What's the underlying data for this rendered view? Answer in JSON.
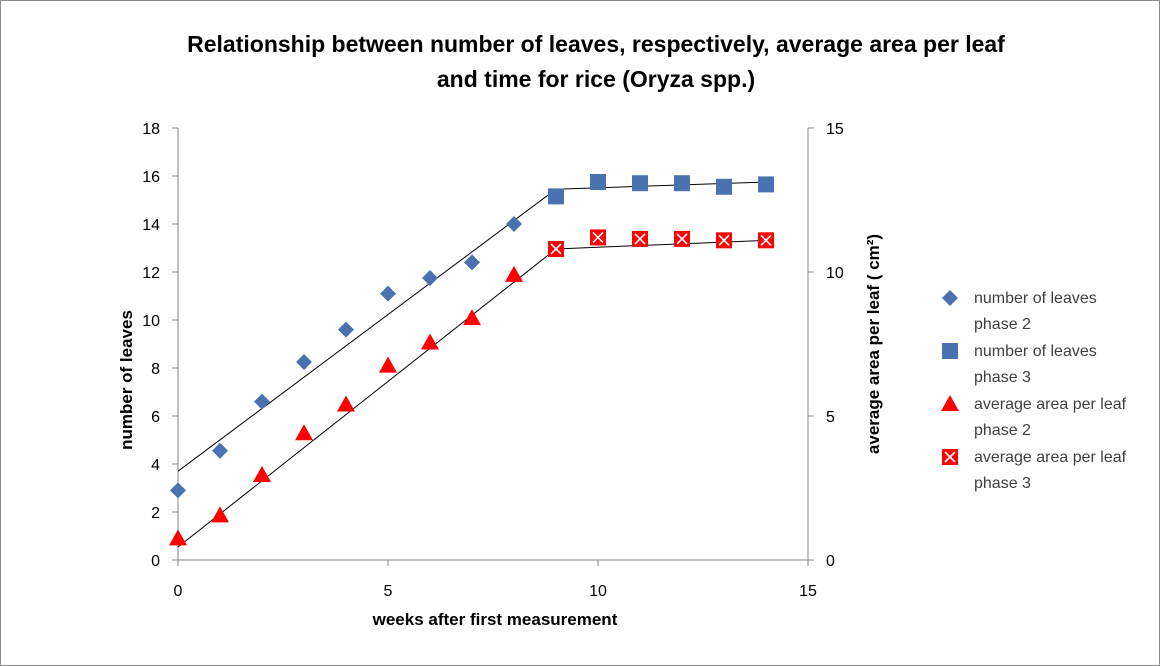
{
  "chart_data": {
    "type": "scatter",
    "title_line1": "Relationship between number of leaves, respectively,  average area per leaf",
    "title_line2": "and time for rice (Oryza spp.)",
    "xlabel": "weeks after first measurement",
    "ylabel_left": "number of leaves",
    "ylabel_right": "average area per leaf ( cm²)",
    "xlim": [
      0,
      15
    ],
    "ylim_left": [
      0,
      18
    ],
    "ylim_right": [
      0,
      15
    ],
    "x_ticks": [
      "0",
      "5",
      "10",
      "15"
    ],
    "y_left_ticks": [
      "0",
      "2",
      "4",
      "6",
      "8",
      "10",
      "12",
      "14",
      "16",
      "18"
    ],
    "y_right_ticks": [
      "0",
      "5",
      "10",
      "15"
    ],
    "grid": false,
    "legend_position": "right",
    "series": [
      {
        "name_line1": "number of leaves",
        "name_line2": "phase 2",
        "axis": "left",
        "marker": "diamond",
        "color": "#4A72B0",
        "x": [
          0,
          1,
          2,
          3,
          4,
          5,
          6,
          7,
          8
        ],
        "y": [
          2.9,
          4.55,
          6.6,
          8.25,
          9.6,
          11.1,
          11.75,
          12.4,
          14.0
        ]
      },
      {
        "name_line1": "number of leaves",
        "name_line2": "phase 3",
        "axis": "left",
        "marker": "square",
        "color": "#4A72B0",
        "x": [
          9,
          10,
          11,
          12,
          13,
          14
        ],
        "y": [
          15.15,
          15.75,
          15.7,
          15.7,
          15.55,
          15.65
        ]
      },
      {
        "name_line1": "average area per leaf",
        "name_line2": "phase 2",
        "axis": "right",
        "marker": "triangle",
        "color": "#FF0000",
        "x": [
          0,
          1,
          2,
          3,
          4,
          5,
          6,
          7,
          8
        ],
        "y": [
          0.75,
          1.55,
          2.95,
          4.4,
          5.4,
          6.75,
          7.55,
          8.4,
          9.9
        ]
      },
      {
        "name_line1": "average area per leaf",
        "name_line2": "phase 3",
        "axis": "right",
        "marker": "square-x",
        "color": "#FF0000",
        "x": [
          9,
          10,
          11,
          12,
          13,
          14
        ],
        "y": [
          10.8,
          11.2,
          11.15,
          11.15,
          11.1,
          11.1
        ]
      }
    ],
    "trend_lines": [
      {
        "axis": "left",
        "x": [
          0,
          9
        ],
        "y": [
          3.7,
          15.45
        ]
      },
      {
        "axis": "left",
        "x": [
          9,
          14
        ],
        "y": [
          15.45,
          15.75
        ]
      },
      {
        "axis": "right",
        "x": [
          0,
          9
        ],
        "y": [
          0.45,
          10.8
        ]
      },
      {
        "axis": "right",
        "x": [
          9,
          14
        ],
        "y": [
          10.8,
          11.1
        ]
      }
    ]
  }
}
